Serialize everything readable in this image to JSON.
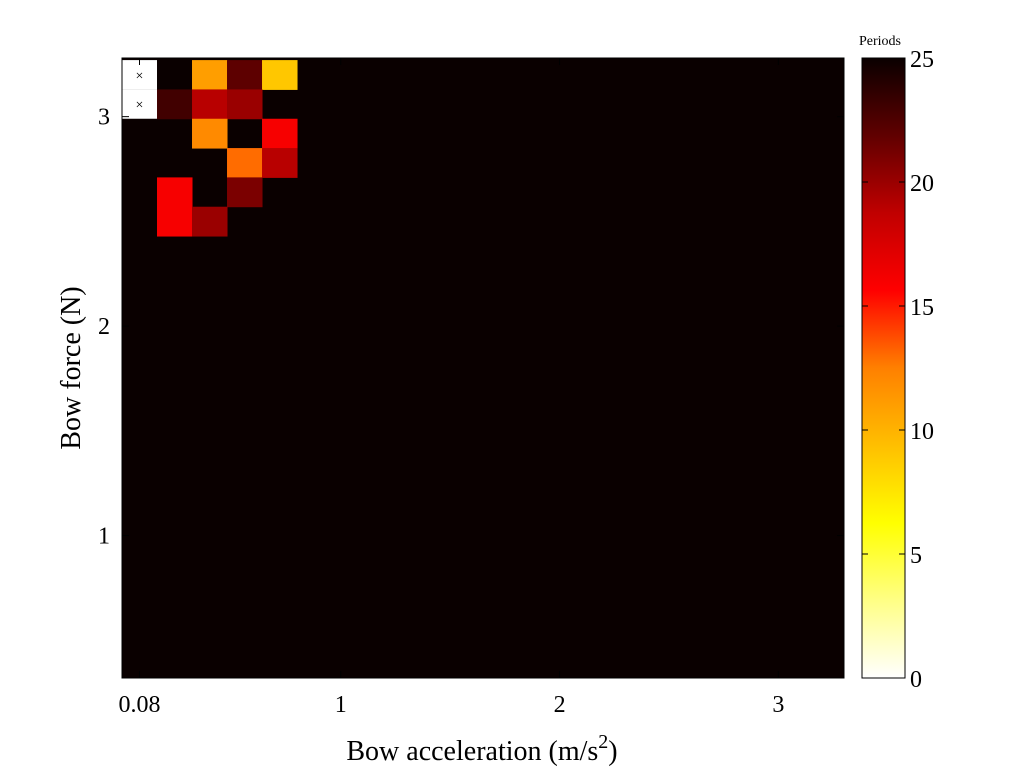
{
  "chart_data": {
    "type": "heatmap",
    "xlabel": "Bow acceleration (m/s",
    "xlabel_superscript": "2",
    "xlabel_suffix": ")",
    "ylabel": "Bow force (N)",
    "colorbar_title": "Periods",
    "colormap": "hot (reversed): 0 = white, 25 = black",
    "colorbar_range": [
      0,
      25
    ],
    "colorbar_ticks": [
      "0",
      "5",
      "10",
      "15",
      "20",
      "25"
    ],
    "x_tick_labels": [
      "0.08",
      "1",
      "2",
      "3"
    ],
    "x_tick_values": [
      0.08,
      1,
      2,
      3
    ],
    "y_tick_labels": [
      "1",
      "2",
      "3"
    ],
    "y_tick_values": [
      1,
      2,
      3
    ],
    "x_step": 0.16,
    "y_step": 0.14,
    "xlim": [
      0,
      3.3
    ],
    "ylim": [
      0.32,
      3.28
    ],
    "default_value": 25,
    "grid": false,
    "no_data_marker": "×",
    "no_data_cells": [
      {
        "x": 0.08,
        "y": 3.2
      },
      {
        "x": 0.08,
        "y": 3.06
      }
    ],
    "cells": [
      {
        "x": 0.4,
        "y": 3.2,
        "value": 11
      },
      {
        "x": 0.56,
        "y": 3.2,
        "value": 22
      },
      {
        "x": 0.72,
        "y": 3.2,
        "value": 9
      },
      {
        "x": 0.24,
        "y": 3.06,
        "value": 23
      },
      {
        "x": 0.4,
        "y": 3.06,
        "value": 19
      },
      {
        "x": 0.56,
        "y": 3.06,
        "value": 20
      },
      {
        "x": 0.4,
        "y": 2.92,
        "value": 12
      },
      {
        "x": 0.72,
        "y": 2.92,
        "value": 16
      },
      {
        "x": 0.56,
        "y": 2.78,
        "value": 13
      },
      {
        "x": 0.72,
        "y": 2.78,
        "value": 19
      },
      {
        "x": 0.24,
        "y": 2.64,
        "value": 16
      },
      {
        "x": 0.56,
        "y": 2.64,
        "value": 21
      },
      {
        "x": 0.24,
        "y": 2.5,
        "value": 16
      },
      {
        "x": 0.4,
        "y": 2.5,
        "value": 20
      }
    ]
  }
}
